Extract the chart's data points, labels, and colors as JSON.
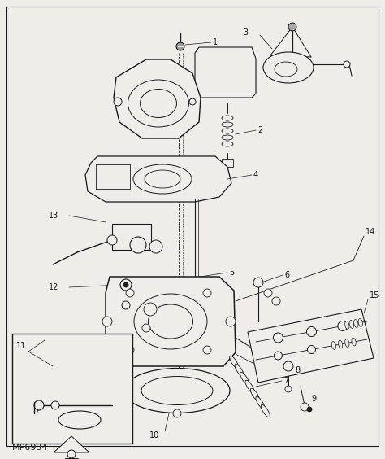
{
  "part_number": "MP6934",
  "bg_color": "#f0ede8",
  "line_color": "#1a1a1a",
  "fig_width": 4.74,
  "fig_height": 5.64,
  "dpi": 100
}
